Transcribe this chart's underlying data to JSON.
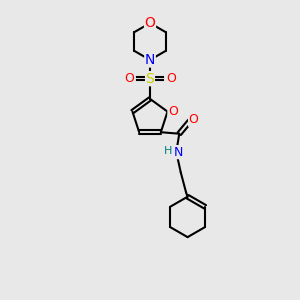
{
  "bg_color": "#e8e8e8",
  "atom_colors": {
    "C": "#000000",
    "N": "#0000ff",
    "O": "#ff0000",
    "S": "#cccc00",
    "NH": "#008080"
  },
  "bond_color": "#000000",
  "font_size_atoms": 8,
  "fig_size": [
    3.0,
    3.0
  ],
  "dpi": 100
}
